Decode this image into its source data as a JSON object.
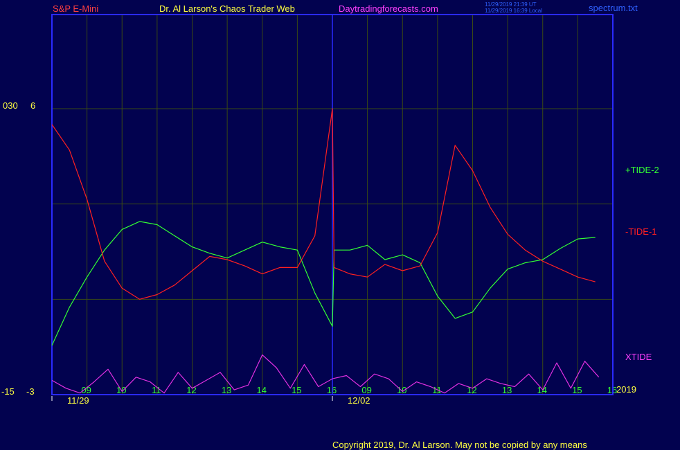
{
  "header": {
    "symbol": "S&P E-Mini",
    "title": "Dr. Al Larson's Chaos Trader Web",
    "site": "Daytradingforecasts.com",
    "timestamp_utc": "11/29/2019 21:39 UT",
    "timestamp_local": "11/29/2019 16:39 Local",
    "file": "spectrum.txt"
  },
  "axis_left": {
    "outer_top": "030",
    "inner_top": "6",
    "outer_bottom": "-15",
    "inner_bottom": "-3"
  },
  "year_label": "2019",
  "footer": {
    "copyright": "Copyright 2019, Dr. Al Larson. May not be copied by any means"
  },
  "colors": {
    "background": "#02024f",
    "frame": "#2a2aff",
    "grid": "#3a4a14",
    "tide_plus": "#33ff33",
    "tide_minus": "#ff2020",
    "xtide": "#e030e0",
    "label_yellow": "#ffff40",
    "label_green": "#33ff33",
    "header_red": "#ff4040",
    "header_yellow": "#ffff40",
    "header_magenta": "#ff40ff",
    "header_blue": "#3060ff"
  },
  "chart_data": {
    "type": "line",
    "ylim": [
      -3,
      6
    ],
    "x_ticks": [
      "09",
      "10",
      "11",
      "12",
      "13",
      "14",
      "15",
      "16",
      "09",
      "10",
      "11",
      "12",
      "13",
      "14",
      "15",
      "16"
    ],
    "dates": [
      "11/29",
      "12/02"
    ],
    "series": [
      {
        "name": "+TIDE-2",
        "x": [
          0,
          0.5,
          1,
          1.5,
          2,
          2.5,
          3,
          3.5,
          4,
          4.5,
          5,
          5.5,
          6,
          6.5,
          7,
          7.5,
          8,
          8.05,
          8.5,
          9,
          9.5,
          10,
          10.5,
          11,
          11.5,
          12,
          12.5,
          13,
          13.5,
          14,
          14.5,
          15,
          15.5
        ],
        "values": [
          -1.45,
          -0.25,
          0.7,
          1.55,
          2.2,
          2.45,
          2.35,
          2.0,
          1.65,
          1.45,
          1.3,
          1.55,
          1.8,
          1.65,
          1.55,
          0.2,
          -0.85,
          1.55,
          1.55,
          1.7,
          1.25,
          1.4,
          1.15,
          0.1,
          -0.6,
          -0.4,
          0.35,
          0.95,
          1.15,
          1.25,
          1.6,
          1.9,
          1.95
        ]
      },
      {
        "name": "-TIDE-1",
        "x": [
          0,
          0.5,
          1,
          1.5,
          2,
          2.5,
          3,
          3.5,
          4,
          4.5,
          5,
          5.5,
          6,
          6.5,
          7,
          7.5,
          8,
          8.05,
          8.5,
          9,
          9.5,
          10,
          10.5,
          11,
          11.5,
          12,
          12.5,
          13,
          13.5,
          14,
          14.5,
          15,
          15.5
        ],
        "values": [
          5.5,
          4.7,
          3.15,
          1.2,
          0.35,
          0.0,
          0.15,
          0.45,
          0.9,
          1.35,
          1.25,
          1.05,
          0.8,
          1.0,
          1.0,
          2.0,
          6.0,
          1.0,
          0.8,
          0.7,
          1.1,
          0.9,
          1.05,
          2.1,
          4.85,
          4.05,
          2.9,
          2.05,
          1.55,
          1.2,
          0.95,
          0.7,
          0.55
        ]
      },
      {
        "name": "XTIDE",
        "x": [
          0,
          0.4,
          0.8,
          1.2,
          1.6,
          2.0,
          2.4,
          2.8,
          3.2,
          3.6,
          4.0,
          4.4,
          4.8,
          5.2,
          5.6,
          6.0,
          6.4,
          6.8,
          7.2,
          7.6,
          8.0,
          8.4,
          8.8,
          9.2,
          9.6,
          10.0,
          10.4,
          10.8,
          11.2,
          11.6,
          12.0,
          12.4,
          12.8,
          13.2,
          13.6,
          14.0,
          14.4,
          14.8,
          15.2,
          15.6
        ],
        "values": [
          -2.55,
          -2.8,
          -2.95,
          -2.6,
          -2.2,
          -2.9,
          -2.45,
          -2.6,
          -2.95,
          -2.3,
          -2.8,
          -2.55,
          -2.3,
          -2.85,
          -2.7,
          -1.75,
          -2.15,
          -2.8,
          -2.05,
          -2.75,
          -2.5,
          -2.4,
          -2.75,
          -2.35,
          -2.5,
          -2.9,
          -2.6,
          -2.75,
          -2.95,
          -2.65,
          -2.8,
          -2.5,
          -2.65,
          -2.75,
          -2.35,
          -2.85,
          -2.0,
          -2.8,
          -1.95,
          -2.45
        ]
      }
    ]
  }
}
